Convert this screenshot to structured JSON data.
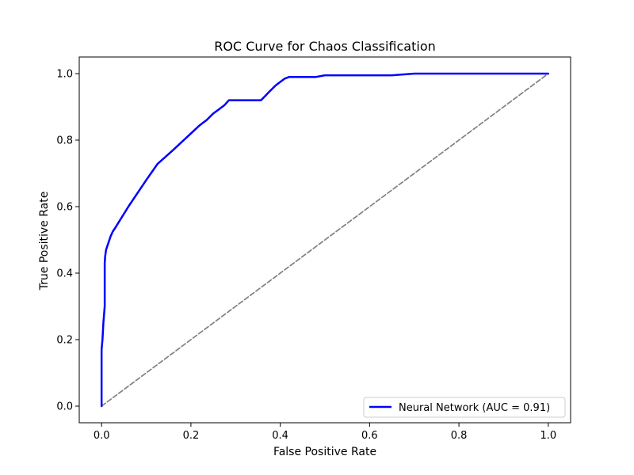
{
  "chart_data": {
    "type": "line",
    "title": "ROC Curve for Chaos Classification",
    "xlabel": "False Positive Rate",
    "ylabel": "True Positive Rate",
    "xlim": [
      -0.05,
      1.05
    ],
    "ylim": [
      -0.05,
      1.05
    ],
    "xticks": [
      "0.0",
      "0.2",
      "0.4",
      "0.6",
      "0.8",
      "1.0"
    ],
    "yticks": [
      "0.0",
      "0.2",
      "0.4",
      "0.6",
      "0.8",
      "1.0"
    ],
    "grid": false,
    "legend_position": "lower-right",
    "series": [
      {
        "name": "Neural Network (AUC = 0.91)",
        "color": "#0000ff",
        "style": "solid",
        "x": [
          0.0,
          0.0,
          0.0,
          0.002,
          0.004,
          0.007,
          0.007,
          0.007,
          0.008,
          0.01,
          0.015,
          0.02,
          0.025,
          0.03,
          0.06,
          0.1,
          0.125,
          0.16,
          0.2,
          0.22,
          0.235,
          0.25,
          0.26,
          0.275,
          0.285,
          0.3,
          0.33,
          0.357,
          0.375,
          0.39,
          0.41,
          0.42,
          0.45,
          0.48,
          0.5,
          0.55,
          0.6,
          0.65,
          0.7,
          0.8,
          0.9,
          1.0
        ],
        "y": [
          0.0,
          0.1,
          0.17,
          0.2,
          0.25,
          0.3,
          0.35,
          0.43,
          0.45,
          0.47,
          0.49,
          0.51,
          0.525,
          0.535,
          0.6,
          0.68,
          0.728,
          0.77,
          0.82,
          0.845,
          0.86,
          0.88,
          0.89,
          0.905,
          0.92,
          0.92,
          0.92,
          0.92,
          0.945,
          0.965,
          0.985,
          0.99,
          0.99,
          0.99,
          0.995,
          0.995,
          0.995,
          0.995,
          1.0,
          1.0,
          1.0,
          1.0
        ]
      },
      {
        "name": "",
        "color": "#808080",
        "style": "dashed",
        "x": [
          0,
          1
        ],
        "y": [
          0,
          1
        ]
      }
    ]
  }
}
